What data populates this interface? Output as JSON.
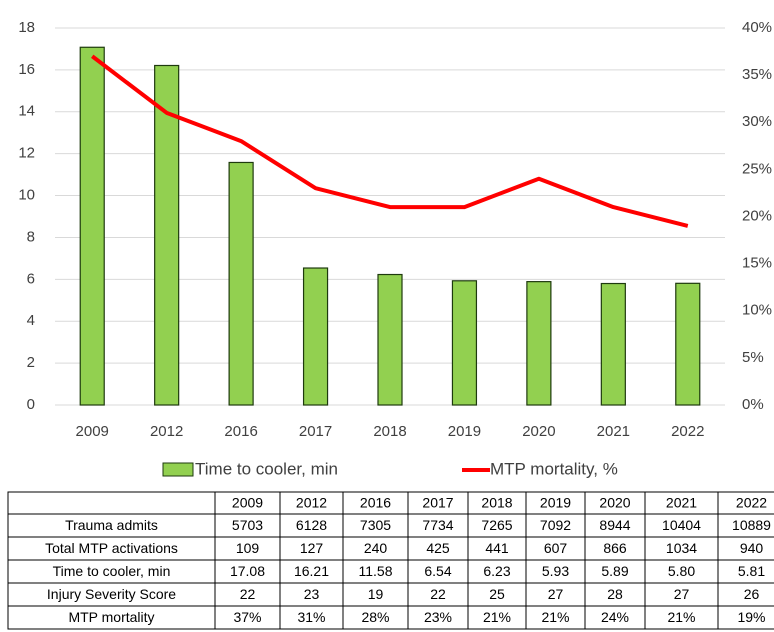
{
  "chart_data": {
    "type": "bar-line",
    "categories": [
      "2009",
      "2012",
      "2016",
      "2017",
      "2018",
      "2019",
      "2020",
      "2021",
      "2022"
    ],
    "series": [
      {
        "name": "Time to cooler, min",
        "type": "bar",
        "color": "#92d050",
        "values": [
          17.08,
          16.21,
          11.58,
          6.54,
          6.23,
          5.93,
          5.89,
          5.8,
          5.81
        ]
      },
      {
        "name": "MTP mortality, %",
        "type": "line",
        "color": "#ff0000",
        "axis": "y2",
        "values": [
          37,
          31,
          28,
          23,
          21,
          21,
          24,
          21,
          19
        ]
      }
    ],
    "ylim": [
      0,
      18
    ],
    "yticks": [
      0,
      2,
      4,
      6,
      8,
      10,
      12,
      14,
      16,
      18
    ],
    "y2lim": [
      0,
      40
    ],
    "y2ticks": [
      {
        "value": 0,
        "label": "0%"
      },
      {
        "value": 5,
        "label": "5%"
      },
      {
        "value": 10,
        "label": "10%"
      },
      {
        "value": 15,
        "label": "15%"
      },
      {
        "value": 20,
        "label": "20%"
      },
      {
        "value": 25,
        "label": "25%"
      },
      {
        "value": 30,
        "label": "30%"
      },
      {
        "value": 35,
        "label": "35%"
      },
      {
        "value": 40,
        "label": "40%"
      }
    ],
    "grid": true,
    "legend": "bottom"
  },
  "table": {
    "header": [
      "2009",
      "2012",
      "2016",
      "2017",
      "2018",
      "2019",
      "2020",
      "2021",
      "2022"
    ],
    "rows": [
      [
        "Trauma admits",
        "5703",
        "6128",
        "7305",
        "7734",
        "7265",
        "7092",
        "8944",
        "10404",
        "10889"
      ],
      [
        "Total MTP activations",
        "109",
        "127",
        "240",
        "425",
        "441",
        "607",
        "866",
        "1034",
        "940"
      ],
      [
        "Time to cooler, min",
        "17.08",
        "16.21",
        "11.58",
        "6.54",
        "6.23",
        "5.93",
        "5.89",
        "5.80",
        "5.81"
      ],
      [
        "Injury Severity Score",
        "22",
        "23",
        "19",
        "22",
        "25",
        "27",
        "28",
        "27",
        "26"
      ],
      [
        "MTP mortality",
        "37%",
        "31%",
        "28%",
        "23%",
        "21%",
        "21%",
        "24%",
        "21%",
        "19%"
      ]
    ]
  }
}
